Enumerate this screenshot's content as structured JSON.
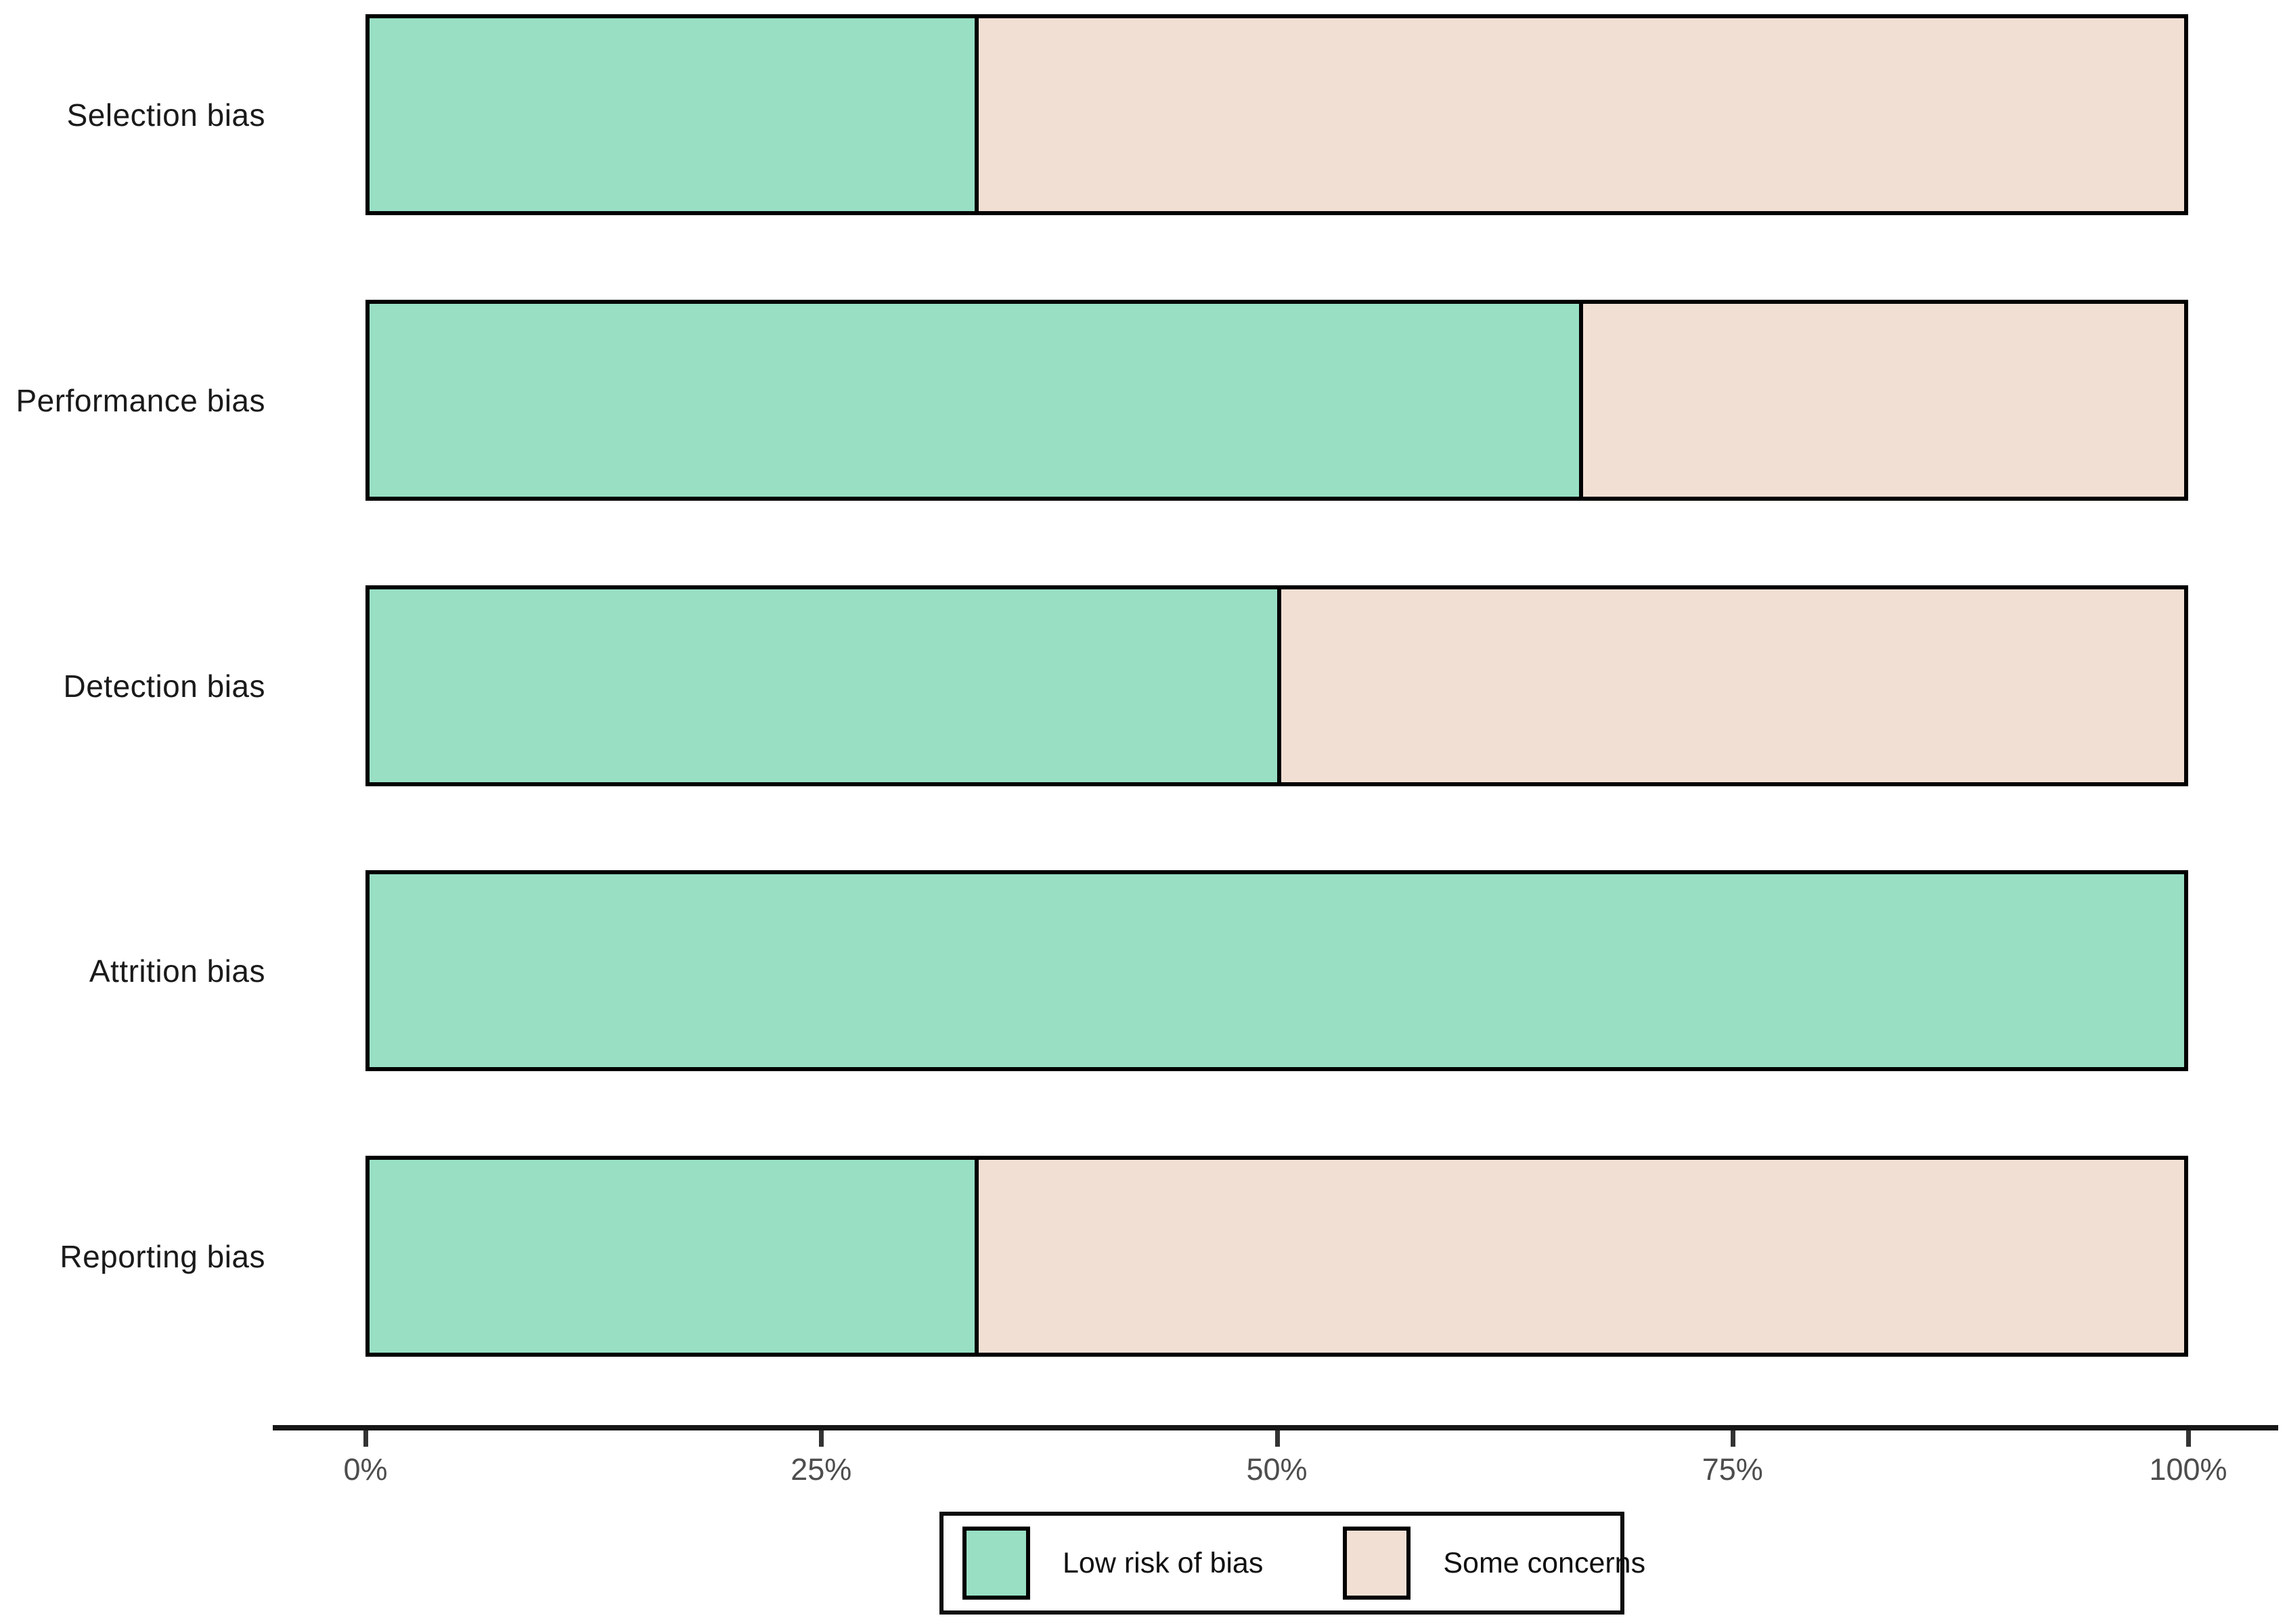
{
  "chart_data": {
    "type": "bar",
    "orientation": "horizontal",
    "stacked": true,
    "title": "",
    "xlabel": "",
    "ylabel": "",
    "categories": [
      "Selection bias",
      "Performance bias",
      "Detection bias",
      "Attrition bias",
      "Reporting bias"
    ],
    "series": [
      {
        "name": "Low risk of bias",
        "color": "#98dfc4",
        "values": [
          33.33,
          66.67,
          50,
          100,
          33.33
        ]
      },
      {
        "name": "Some concerns",
        "color": "#f2dfd4",
        "values": [
          66.67,
          33.33,
          50,
          0,
          66.67
        ]
      }
    ],
    "x_axis": {
      "range": [
        0,
        100
      ],
      "tick_values": [
        0,
        25,
        50,
        75,
        100
      ],
      "tick_labels": [
        "0%",
        "25%",
        "50%",
        "75%",
        "100%"
      ]
    },
    "grid": false,
    "bar_border_color": "#000000",
    "axis_line_color": "#161616",
    "tick_label_color": "#4d4d4d",
    "legend": {
      "position": "bottom",
      "entries": [
        {
          "label": "Low risk of bias",
          "color": "#98dfc4"
        },
        {
          "label": "Some concerns",
          "color": "#f2dfd4"
        }
      ]
    }
  }
}
